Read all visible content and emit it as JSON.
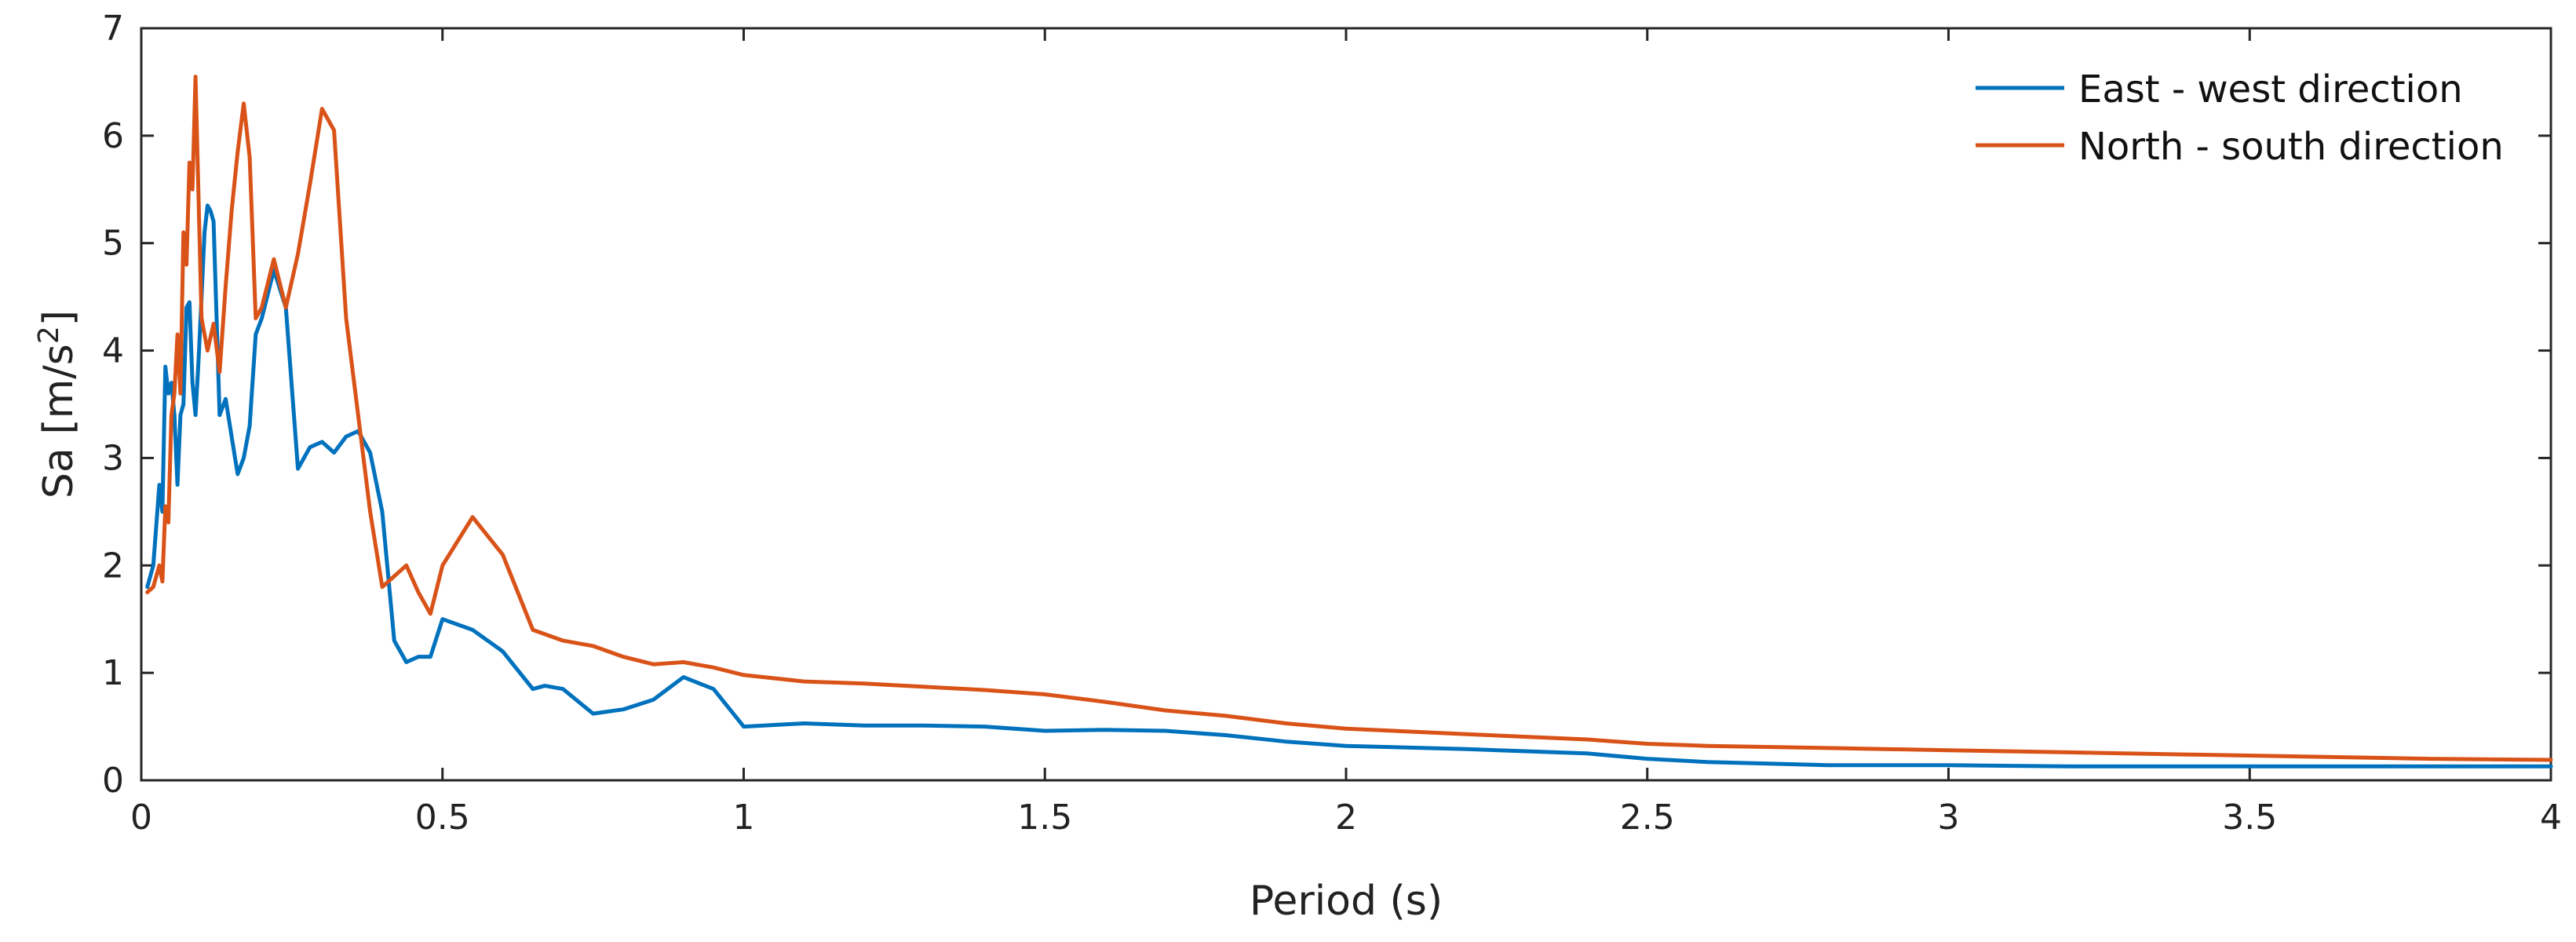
{
  "chart_data": {
    "type": "line",
    "title": "",
    "xlabel": "Period (s)",
    "ylabel": {
      "prefix": "Sa [m/s",
      "superscript": "2",
      "suffix": "]"
    },
    "xlim": [
      0,
      4
    ],
    "ylim": [
      0,
      7
    ],
    "grid": false,
    "legend_position": "top-right",
    "xticks": [
      "0",
      "0.5",
      "1",
      "1.5",
      "2",
      "2.5",
      "3",
      "3.5",
      "4"
    ],
    "yticks": [
      "0",
      "1",
      "2",
      "3",
      "4",
      "5",
      "6",
      "7"
    ],
    "series": [
      {
        "name": "East - west direction",
        "color": "#0072BD",
        "x": [
          0.01,
          0.02,
          0.03,
          0.035,
          0.04,
          0.045,
          0.05,
          0.055,
          0.06,
          0.065,
          0.07,
          0.075,
          0.08,
          0.085,
          0.09,
          0.095,
          0.1,
          0.105,
          0.11,
          0.115,
          0.12,
          0.13,
          0.14,
          0.15,
          0.16,
          0.17,
          0.18,
          0.19,
          0.2,
          0.22,
          0.24,
          0.26,
          0.28,
          0.3,
          0.32,
          0.34,
          0.36,
          0.38,
          0.4,
          0.42,
          0.44,
          0.46,
          0.48,
          0.5,
          0.55,
          0.6,
          0.65,
          0.67,
          0.7,
          0.75,
          0.8,
          0.85,
          0.9,
          0.95,
          1.0,
          1.1,
          1.2,
          1.3,
          1.4,
          1.5,
          1.6,
          1.7,
          1.8,
          1.9,
          2.0,
          2.2,
          2.4,
          2.5,
          2.6,
          2.8,
          3.0,
          3.2,
          3.4,
          3.6,
          3.8,
          4.0
        ],
        "y": [
          1.8,
          2.0,
          2.75,
          2.5,
          3.85,
          3.6,
          3.7,
          3.4,
          2.75,
          3.4,
          3.5,
          4.4,
          4.45,
          3.7,
          3.4,
          3.9,
          4.5,
          5.1,
          5.35,
          5.3,
          5.2,
          3.4,
          3.55,
          3.2,
          2.85,
          3.0,
          3.3,
          4.15,
          4.3,
          4.75,
          4.4,
          2.9,
          3.1,
          3.15,
          3.05,
          3.2,
          3.25,
          3.05,
          2.5,
          1.3,
          1.1,
          1.15,
          1.15,
          1.5,
          1.4,
          1.2,
          0.85,
          0.88,
          0.85,
          0.62,
          0.66,
          0.75,
          0.96,
          0.85,
          0.5,
          0.53,
          0.51,
          0.51,
          0.5,
          0.46,
          0.47,
          0.46,
          0.42,
          0.36,
          0.32,
          0.29,
          0.25,
          0.2,
          0.17,
          0.14,
          0.14,
          0.13,
          0.13,
          0.13,
          0.13,
          0.13
        ]
      },
      {
        "name": "North - south direction",
        "color": "#D95319",
        "x": [
          0.01,
          0.02,
          0.03,
          0.035,
          0.04,
          0.045,
          0.05,
          0.055,
          0.06,
          0.065,
          0.07,
          0.075,
          0.08,
          0.085,
          0.09,
          0.1,
          0.11,
          0.12,
          0.13,
          0.14,
          0.15,
          0.16,
          0.17,
          0.18,
          0.19,
          0.2,
          0.22,
          0.24,
          0.26,
          0.28,
          0.3,
          0.32,
          0.34,
          0.36,
          0.38,
          0.4,
          0.42,
          0.44,
          0.46,
          0.48,
          0.5,
          0.55,
          0.6,
          0.65,
          0.7,
          0.75,
          0.8,
          0.85,
          0.9,
          0.95,
          1.0,
          1.1,
          1.2,
          1.3,
          1.4,
          1.5,
          1.6,
          1.7,
          1.8,
          1.9,
          2.0,
          2.2,
          2.4,
          2.5,
          2.6,
          2.8,
          3.0,
          3.2,
          3.4,
          3.6,
          3.8,
          4.0
        ],
        "y": [
          1.75,
          1.8,
          2.0,
          1.85,
          2.55,
          2.4,
          3.4,
          3.6,
          4.15,
          3.6,
          5.1,
          4.8,
          5.75,
          5.5,
          6.55,
          4.3,
          4.0,
          4.25,
          3.8,
          4.6,
          5.3,
          5.85,
          6.3,
          5.8,
          4.3,
          4.4,
          4.85,
          4.4,
          4.9,
          5.55,
          6.25,
          6.05,
          4.3,
          3.4,
          2.5,
          1.8,
          1.9,
          2.0,
          1.75,
          1.55,
          2.0,
          2.45,
          2.1,
          1.4,
          1.3,
          1.25,
          1.15,
          1.08,
          1.1,
          1.05,
          0.98,
          0.92,
          0.9,
          0.87,
          0.84,
          0.8,
          0.73,
          0.65,
          0.6,
          0.53,
          0.48,
          0.43,
          0.38,
          0.34,
          0.32,
          0.3,
          0.28,
          0.26,
          0.24,
          0.22,
          0.2,
          0.19
        ]
      }
    ]
  }
}
